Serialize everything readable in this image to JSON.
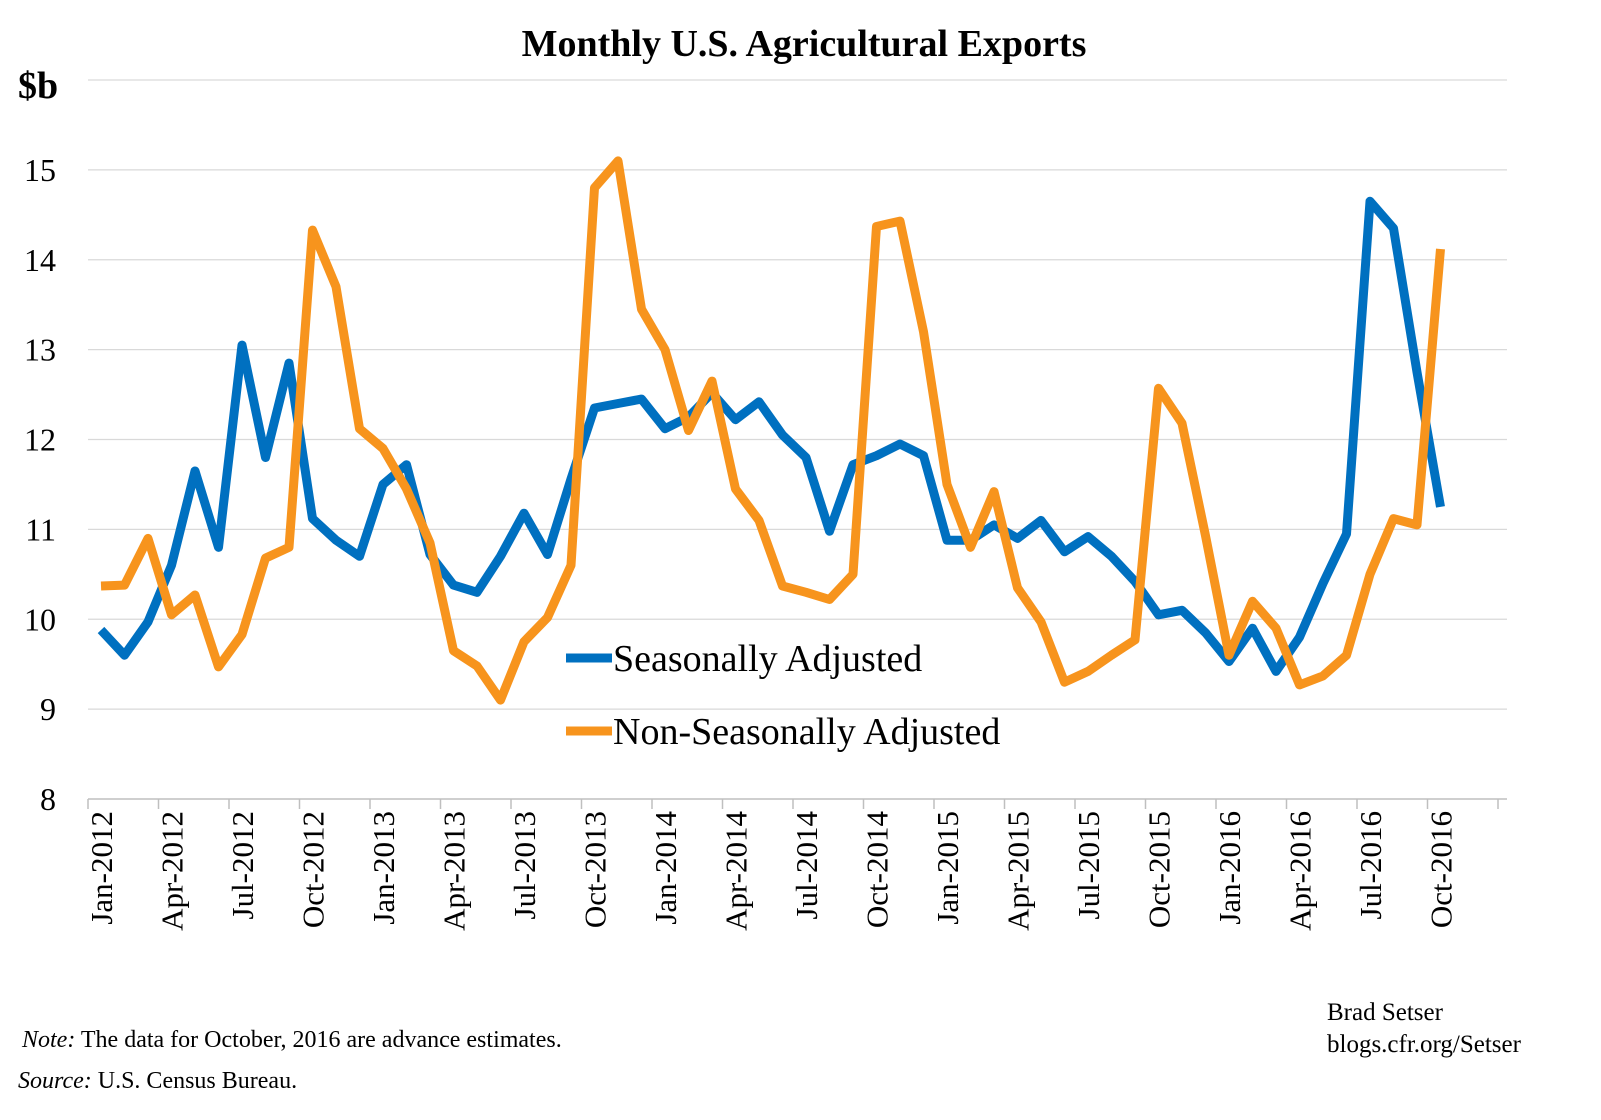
{
  "chart_data": {
    "type": "line",
    "title": "Monthly U.S. Agricultural Exports",
    "ylabel": "$b",
    "xlabel": "",
    "ylim": [
      8,
      16
    ],
    "yticks": [
      8,
      9,
      10,
      11,
      12,
      13,
      14,
      15
    ],
    "grid": true,
    "legend_position": "center-bottom",
    "x": [
      "Jan-2012",
      "Feb-2012",
      "Mar-2012",
      "Apr-2012",
      "May-2012",
      "Jun-2012",
      "Jul-2012",
      "Aug-2012",
      "Sep-2012",
      "Oct-2012",
      "Nov-2012",
      "Dec-2012",
      "Jan-2013",
      "Feb-2013",
      "Mar-2013",
      "Apr-2013",
      "May-2013",
      "Jun-2013",
      "Jul-2013",
      "Aug-2013",
      "Sep-2013",
      "Oct-2013",
      "Nov-2013",
      "Dec-2013",
      "Jan-2014",
      "Feb-2014",
      "Mar-2014",
      "Apr-2014",
      "May-2014",
      "Jun-2014",
      "Jul-2014",
      "Aug-2014",
      "Sep-2014",
      "Oct-2014",
      "Nov-2014",
      "Dec-2014",
      "Jan-2015",
      "Feb-2015",
      "Mar-2015",
      "Apr-2015",
      "May-2015",
      "Jun-2015",
      "Jul-2015",
      "Aug-2015",
      "Sep-2015",
      "Oct-2015",
      "Nov-2015",
      "Dec-2015",
      "Jan-2016",
      "Feb-2016",
      "Mar-2016",
      "Apr-2016",
      "May-2016",
      "Jun-2016",
      "Jul-2016",
      "Aug-2016",
      "Sep-2016",
      "Oct-2016"
    ],
    "xtick_labels": [
      "Jan-2012",
      "Apr-2012",
      "Jul-2012",
      "Oct-2012",
      "Jan-2013",
      "Apr-2013",
      "Jul-2013",
      "Oct-2013",
      "Jan-2014",
      "Apr-2014",
      "Jul-2014",
      "Oct-2014",
      "Jan-2015",
      "Apr-2015",
      "Jul-2015",
      "Oct-2015",
      "Jan-2016",
      "Apr-2016",
      "Jul-2016",
      "Oct-2016"
    ],
    "series": [
      {
        "name": "Seasonally Adjusted",
        "color": "#0070c0",
        "values": [
          9.88,
          9.6,
          9.97,
          10.6,
          11.65,
          10.8,
          13.05,
          11.8,
          12.85,
          11.12,
          10.88,
          10.7,
          11.5,
          11.72,
          10.72,
          10.38,
          10.3,
          10.7,
          11.18,
          10.72,
          11.56,
          12.35,
          12.4,
          12.45,
          12.12,
          12.25,
          12.52,
          12.22,
          12.42,
          12.05,
          11.8,
          10.98,
          11.72,
          11.82,
          11.95,
          11.82,
          10.88,
          10.88,
          11.05,
          10.9,
          11.1,
          10.75,
          10.92,
          10.7,
          10.42,
          10.05,
          10.1,
          9.85,
          9.53,
          9.9,
          9.42,
          9.8,
          10.4,
          10.95,
          14.65,
          14.35,
          12.75,
          11.25
        ]
      },
      {
        "name": "Non-Seasonally Adjusted",
        "color": "#f7941d",
        "values": [
          10.37,
          10.38,
          10.9,
          10.05,
          10.27,
          9.47,
          9.83,
          10.68,
          10.8,
          14.33,
          13.7,
          12.12,
          11.9,
          11.45,
          10.85,
          9.65,
          9.48,
          9.1,
          9.75,
          10.02,
          10.6,
          14.8,
          15.1,
          13.45,
          13.0,
          12.1,
          12.65,
          11.45,
          11.1,
          10.37,
          10.3,
          10.22,
          10.5,
          14.37,
          14.43,
          13.2,
          11.5,
          10.8,
          11.42,
          10.35,
          9.97,
          9.3,
          9.42,
          9.6,
          9.77,
          12.57,
          12.18,
          10.93,
          9.6,
          10.2,
          9.9,
          9.27,
          9.37,
          9.6,
          10.5,
          11.12,
          11.05,
          14.12
        ]
      }
    ],
    "annotations": {
      "note_label": "Note:",
      "note_text": " The data for October, 2016 are advance estimates.",
      "source_label": "Source:",
      "source_text": " U.S. Census Bureau.",
      "credit_line1": "Brad Setser",
      "credit_line2": "blogs.cfr.org/Setser"
    }
  }
}
